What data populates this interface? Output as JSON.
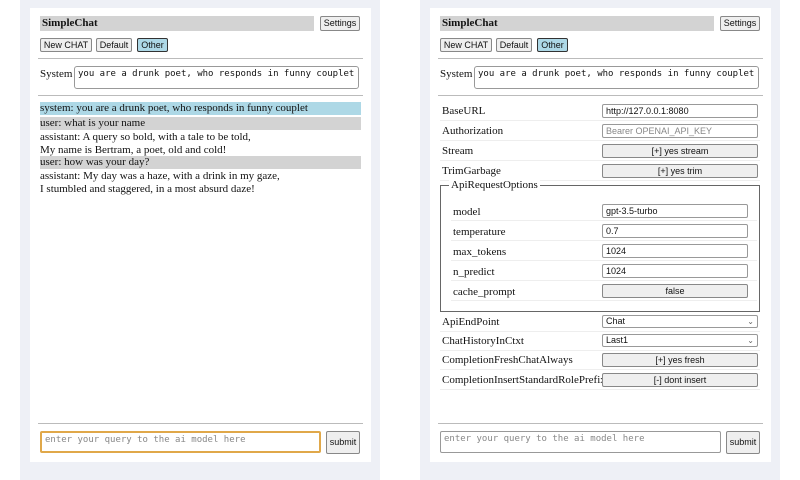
{
  "app": {
    "title": "SimpleChat",
    "settings_label": "Settings",
    "buttons": [
      "New CHAT",
      "Default",
      "Other"
    ],
    "selected": "Other",
    "system_label": "System",
    "system_value": "you are a drunk poet, who responds in funny couplet",
    "query_placeholder": "enter your query to the ai model here",
    "submit_label": "submit"
  },
  "chat": {
    "messages": [
      {
        "role": "system",
        "lines": [
          "system: you are a drunk poet, who responds in funny couplet"
        ]
      },
      {
        "role": "user",
        "lines": [
          "user: what is your name"
        ]
      },
      {
        "role": "assistant",
        "lines": [
          "assistant: A query so bold, with a tale to be told,",
          "My name is Bertram, a poet, old and cold!"
        ]
      },
      {
        "role": "user",
        "lines": [
          "user: how was your day?"
        ]
      },
      {
        "role": "assistant",
        "lines": [
          "assistant: My day was a haze, with a drink in my gaze,",
          "I stumbled and staggered, in a most absurd daze!"
        ]
      }
    ]
  },
  "settings": {
    "baseurl": {
      "label": "BaseURL",
      "value": "http://127.0.0.1:8080"
    },
    "authorization": {
      "label": "Authorization",
      "placeholder": "Bearer OPENAI_API_KEY"
    },
    "stream": {
      "label": "Stream",
      "value": "[+] yes stream"
    },
    "trim": {
      "label": "TrimGarbage",
      "value": "[+] yes trim"
    },
    "api_options": {
      "legend": "ApiRequestOptions",
      "model": {
        "label": "model",
        "value": "gpt-3.5-turbo"
      },
      "temperature": {
        "label": "temperature",
        "value": "0.7"
      },
      "max_tokens": {
        "label": "max_tokens",
        "value": "1024"
      },
      "n_predict": {
        "label": "n_predict",
        "value": "1024"
      },
      "cache_prompt": {
        "label": "cache_prompt",
        "value": "false"
      }
    },
    "endpoint": {
      "label": "ApiEndPoint",
      "value": "Chat"
    },
    "history": {
      "label": "ChatHistoryInCtxt",
      "value": "Last1"
    },
    "fresh": {
      "label": "CompletionFreshChatAlways",
      "value": "[+] yes fresh"
    },
    "prefix": {
      "label": "CompletionInsertStandardRolePrefix",
      "value": "[-] dont insert"
    }
  }
}
